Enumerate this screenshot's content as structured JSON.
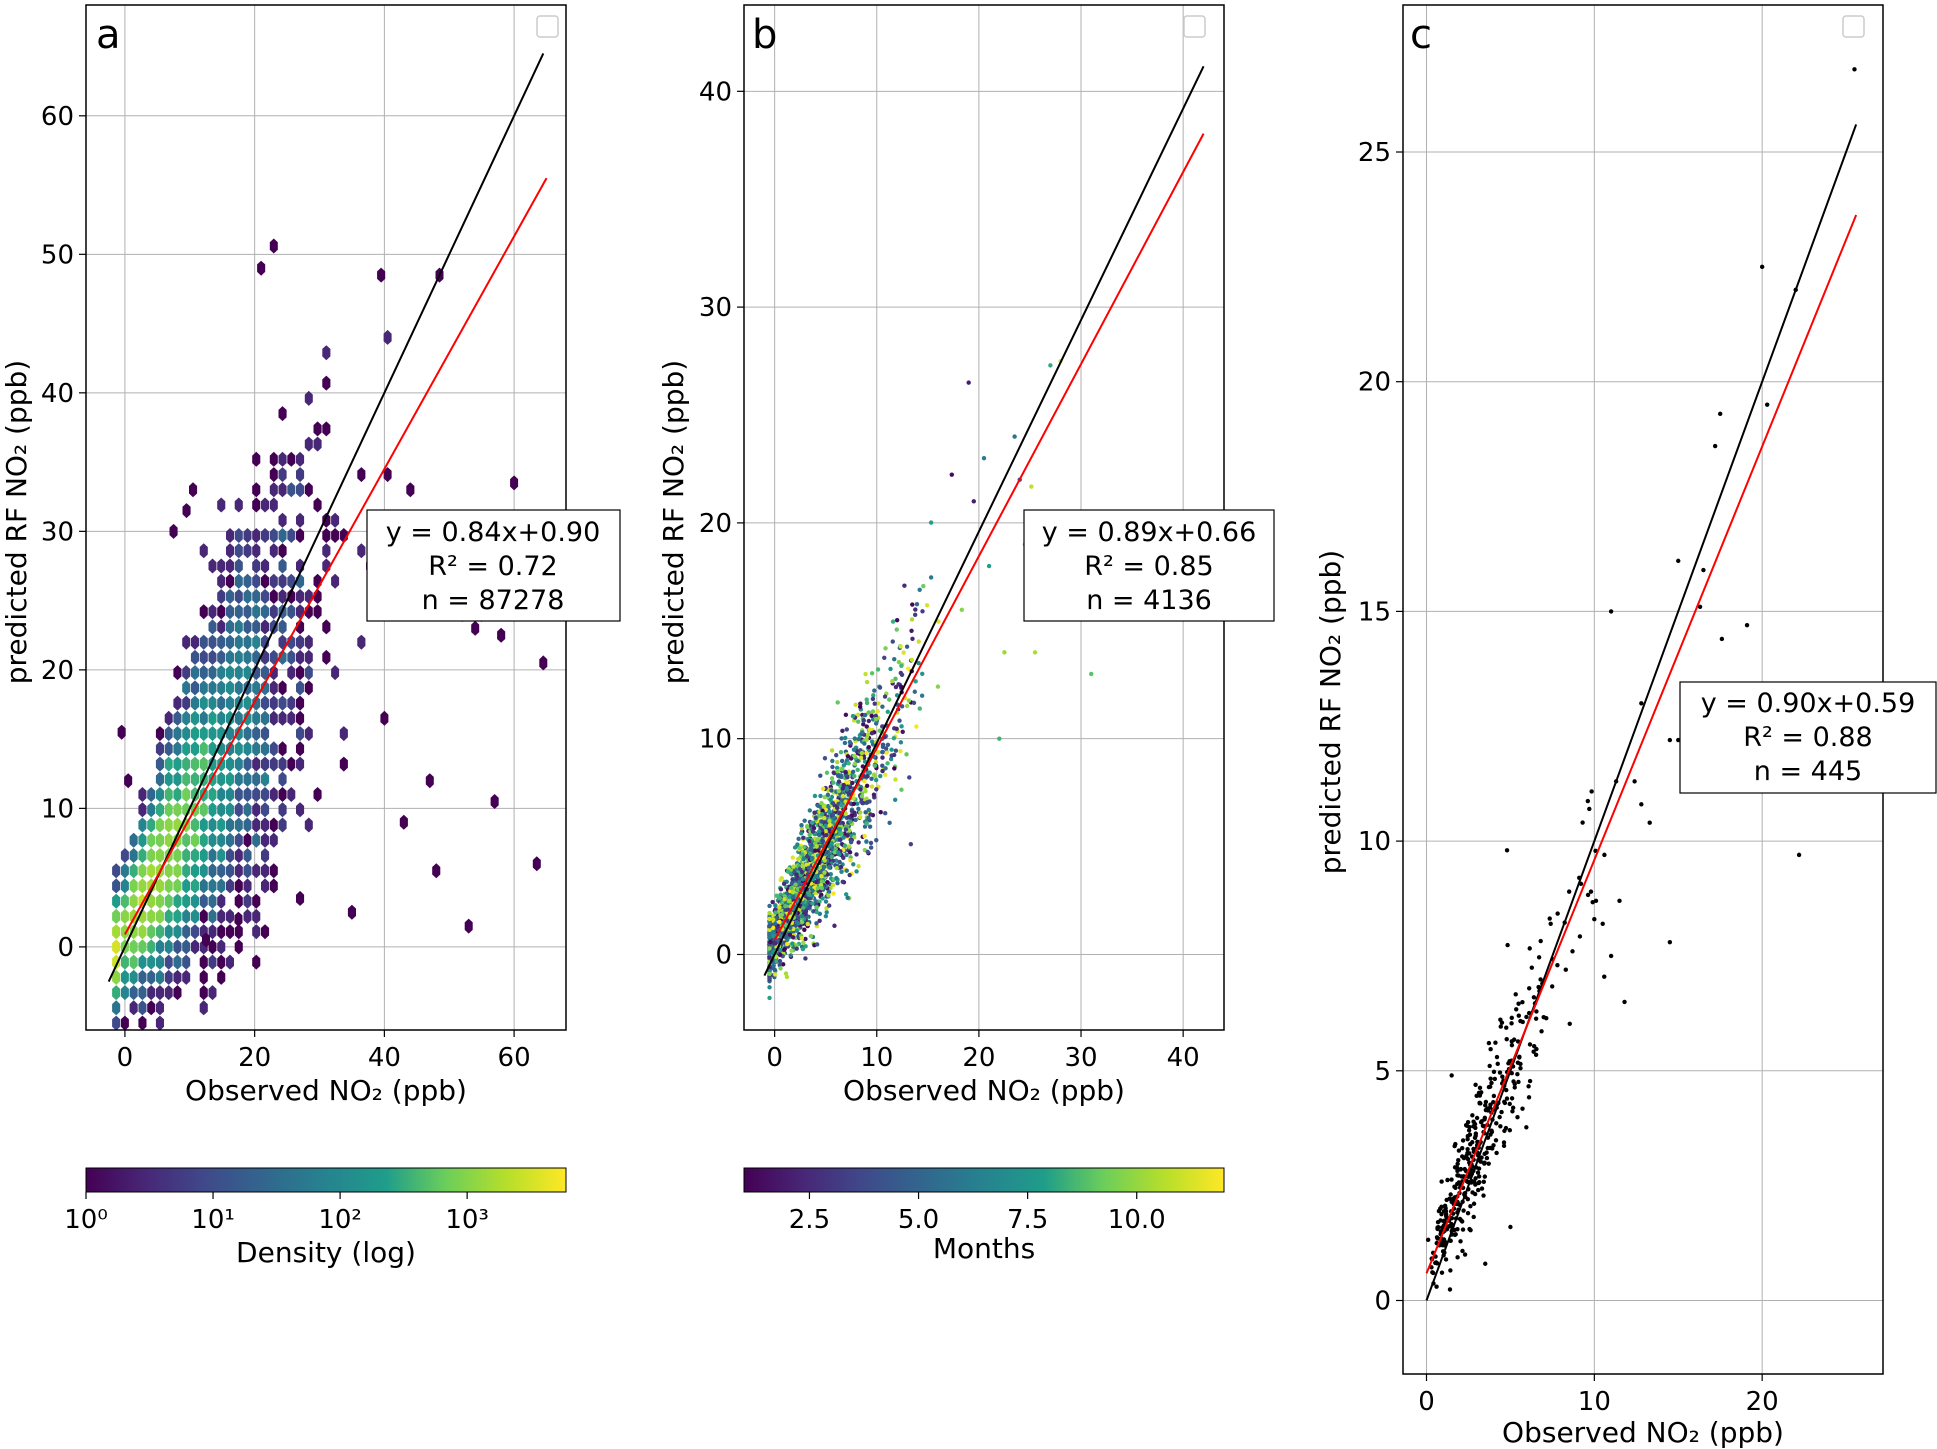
{
  "colors": {
    "fit_line": "#ff0000",
    "identity_line": "#000000",
    "scatter_c": "#000000",
    "grid": "#b0b0b0",
    "viridis": [
      "#440154",
      "#482777",
      "#3f4a8a",
      "#31678e",
      "#26838f",
      "#1f9d8a",
      "#6cce5a",
      "#b6de2b",
      "#fee825"
    ]
  },
  "chart_data": [
    {
      "panel": "a",
      "type": "hexbin",
      "xlabel": "Observed NO₂ (ppb)",
      "ylabel": "predicted RF NO₂ (ppb)",
      "xlim": [
        -6,
        68
      ],
      "ylim": [
        -6,
        68
      ],
      "xticks": [
        0,
        20,
        40,
        60
      ],
      "yticks": [
        0,
        10,
        20,
        30,
        40,
        50,
        60
      ],
      "grid": true,
      "legend": "top-right (empty)",
      "annotation": [
        "y = 0.84x+0.90",
        "R² = 0.72",
        "n = 87278"
      ],
      "fit": {
        "slope": 0.84,
        "intercept": 0.9,
        "x_range": [
          0,
          65
        ]
      },
      "identity": {
        "x_range": [
          -2.5,
          64.5
        ]
      },
      "colorbar": {
        "label": "Density (log)",
        "scale": "log",
        "ticks": [
          "10⁰",
          "10¹",
          "10²",
          "10³"
        ],
        "range": [
          1,
          6000
        ]
      },
      "points": [
        [
          63.5,
          6
        ],
        [
          57,
          10.5
        ],
        [
          53,
          1.5
        ],
        [
          48,
          5.5
        ],
        [
          54,
          23
        ],
        [
          58,
          22.5
        ],
        [
          64.5,
          20.5
        ],
        [
          52,
          24
        ],
        [
          60,
          33.5
        ],
        [
          48.5,
          48.5
        ],
        [
          39.5,
          48.5
        ],
        [
          21,
          49
        ],
        [
          52.5,
          26
        ],
        [
          55,
          24
        ],
        [
          61,
          28
        ],
        [
          17.5,
          2
        ],
        [
          27,
          3.5
        ],
        [
          12.5,
          0.5
        ],
        [
          9.5,
          31.5
        ],
        [
          10.5,
          33
        ],
        [
          7.5,
          30
        ],
        [
          -0.5,
          15.5
        ],
        [
          0.5,
          12
        ],
        [
          35,
          2.5
        ],
        [
          44,
          33
        ],
        [
          47,
          12
        ],
        [
          43,
          9
        ],
        [
          40,
          16.5
        ]
      ]
    },
    {
      "panel": "b",
      "type": "scatter",
      "xlabel": "Observed NO₂ (ppb)",
      "ylabel": "predicted RF NO₂ (ppb)",
      "xlim": [
        -3,
        44
      ],
      "ylim": [
        -3.5,
        44
      ],
      "xticks": [
        0,
        10,
        20,
        30,
        40
      ],
      "yticks": [
        0,
        10,
        20,
        30,
        40
      ],
      "grid": true,
      "legend": "top-right (empty)",
      "annotation": [
        "y = 0.89x+0.66",
        "R² = 0.85",
        "n = 4136"
      ],
      "fit": {
        "slope": 0.89,
        "intercept": 0.66,
        "x_range": [
          0,
          42
        ]
      },
      "identity": {
        "x_range": [
          -1,
          42
        ]
      },
      "colorbar": {
        "label": "Months",
        "scale": "linear",
        "ticks": [
          "2.5",
          "5.0",
          "7.5",
          "10.0"
        ],
        "range": [
          1,
          12
        ]
      },
      "points": [
        [
          31,
          13
        ],
        [
          27,
          27.3
        ],
        [
          28,
          27.5
        ],
        [
          22.5,
          14
        ],
        [
          25.5,
          14
        ],
        [
          24.5,
          19
        ],
        [
          26,
          20
        ],
        [
          22,
          10
        ],
        [
          20.5,
          23
        ],
        [
          19,
          26.5
        ],
        [
          23.5,
          24
        ],
        [
          24,
          22
        ],
        [
          21,
          18
        ],
        [
          19.5,
          21
        ]
      ]
    },
    {
      "panel": "c",
      "type": "scatter",
      "xlabel": "Observed NO₂ (ppb)",
      "ylabel": "predicted RF NO₂ (ppb)",
      "xlim": [
        -1.4,
        27.2
      ],
      "ylim": [
        -1.6,
        28.2
      ],
      "xticks": [
        0,
        10,
        20
      ],
      "yticks": [
        0,
        5,
        10,
        15,
        20,
        25
      ],
      "grid": true,
      "legend": "top-right (empty)",
      "annotation": [
        "y = 0.90x+0.59",
        "R² = 0.88",
        "n = 445"
      ],
      "fit": {
        "slope": 0.9,
        "intercept": 0.59,
        "x_range": [
          0,
          25.6
        ]
      },
      "identity": {
        "x_range": [
          0,
          25.6
        ]
      },
      "points": [
        [
          25.5,
          26.8
        ],
        [
          20,
          22.5
        ],
        [
          22,
          22
        ],
        [
          22.2,
          9.7
        ],
        [
          17.5,
          19.3
        ],
        [
          17.2,
          18.6
        ],
        [
          20.3,
          19.5
        ],
        [
          15,
          16.1
        ],
        [
          16.5,
          15.9
        ],
        [
          16.3,
          15.1
        ],
        [
          17.6,
          14.4
        ],
        [
          19.1,
          14.7
        ],
        [
          11,
          15
        ],
        [
          12.8,
          13
        ],
        [
          12.4,
          11.3
        ],
        [
          12.8,
          10.8
        ],
        [
          13.3,
          10.4
        ],
        [
          15,
          12.2
        ],
        [
          14.5,
          12.2
        ],
        [
          14.5,
          7.8
        ],
        [
          11,
          7.5
        ],
        [
          11.8,
          6.5
        ],
        [
          10,
          8.3
        ],
        [
          10.5,
          8.2
        ],
        [
          10.6,
          9.7
        ],
        [
          9.7,
          10.7
        ],
        [
          11.3,
          11.3
        ],
        [
          4.8,
          9.8
        ],
        [
          1.5,
          4.9
        ],
        [
          3.5,
          0.8
        ],
        [
          5,
          1.6
        ],
        [
          2.3,
          1
        ],
        [
          0.6,
          0.3
        ],
        [
          9.8,
          8.9
        ],
        [
          9.1,
          9.2
        ],
        [
          8.5,
          8.9
        ],
        [
          8.7,
          7.6
        ],
        [
          7.4,
          8.2
        ],
        [
          6.4,
          6.6
        ],
        [
          5.5,
          6.2
        ],
        [
          4.2,
          5.3
        ],
        [
          3.2,
          4.5
        ],
        [
          2.8,
          3.3
        ],
        [
          1.9,
          2.1
        ],
        [
          1.2,
          1.8
        ],
        [
          2.4,
          2.6
        ],
        [
          3.6,
          3.1
        ],
        [
          5.1,
          4.4
        ],
        [
          6.9,
          6.9
        ],
        [
          7.8,
          7.3
        ],
        [
          8.3,
          7.2
        ],
        [
          10.1,
          8.7
        ],
        [
          11.5,
          8.7
        ],
        [
          1.1,
          1.2
        ],
        [
          0.9,
          1.5
        ],
        [
          1.7,
          2.9
        ],
        [
          0.4,
          0.6
        ]
      ]
    }
  ],
  "panel_labels": [
    "a",
    "b",
    "c"
  ]
}
